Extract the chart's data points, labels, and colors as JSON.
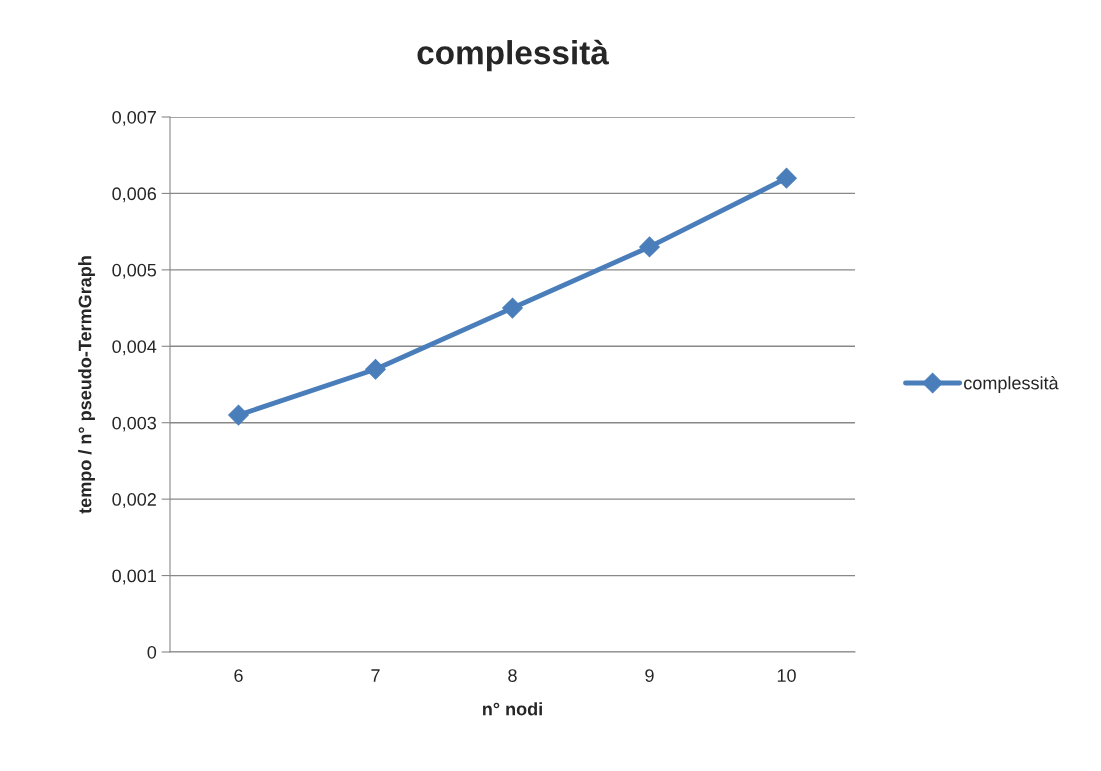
{
  "chart_data": {
    "type": "line",
    "title": "complessità",
    "xlabel": "n° nodi",
    "ylabel": "tempo / n° pseudo-TermGraph",
    "categories": [
      "6",
      "7",
      "8",
      "9",
      "10"
    ],
    "series": [
      {
        "name": "complessità",
        "color": "#4a7ebb",
        "values": [
          0.0031,
          0.0037,
          0.0045,
          0.0053,
          0.0062
        ]
      }
    ],
    "ylim": [
      0,
      0.007
    ],
    "yticks": [
      0,
      {
        "value": 0.001,
        "label": "0,001"
      },
      {
        "value": 0.002,
        "label": "0,002"
      },
      {
        "value": 0.003,
        "label": "0,003"
      },
      {
        "value": 0.004,
        "label": "0,004"
      },
      {
        "value": 0.005,
        "label": "0,005"
      },
      {
        "value": 0.006,
        "label": "0,006"
      },
      {
        "value": 0.007,
        "label": "0,007"
      }
    ],
    "grid": "y",
    "legend": "right",
    "marker": "diamond",
    "line_style": "solid"
  }
}
